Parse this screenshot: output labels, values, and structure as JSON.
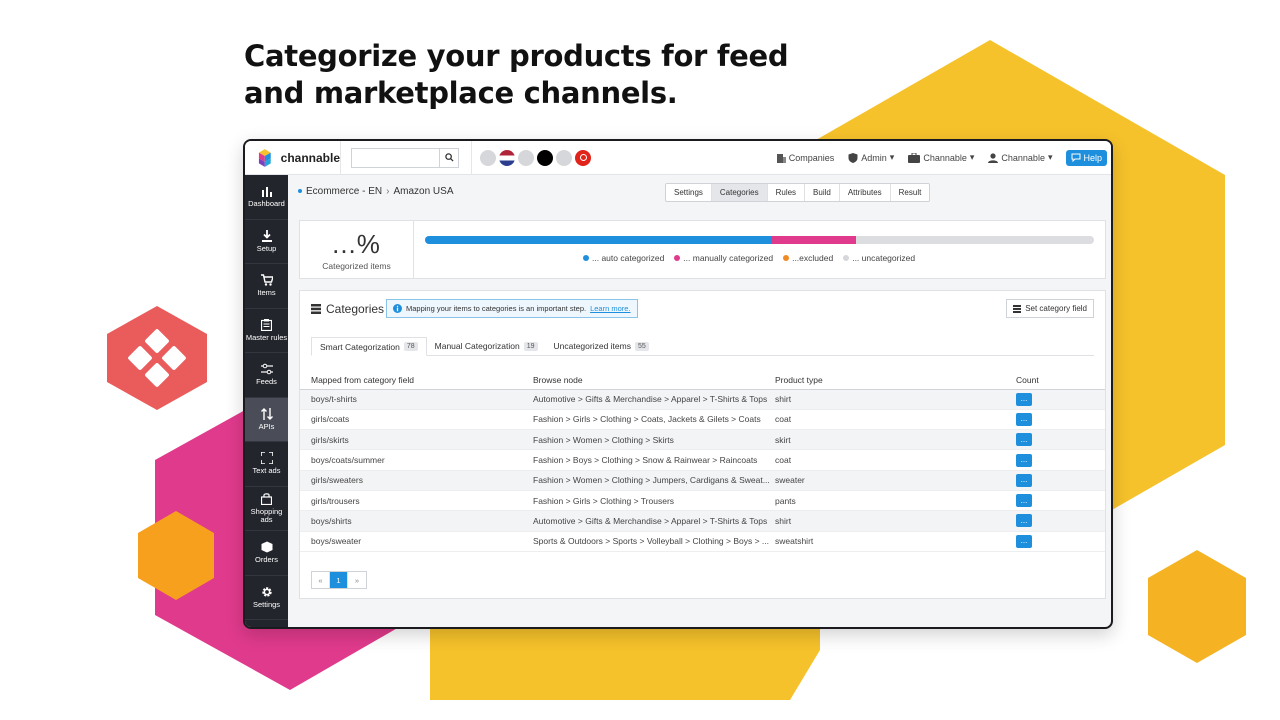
{
  "headline": {
    "line1": "Categorize your products for feed",
    "line2": "and marketplace channels."
  },
  "colors": {
    "brand_blue": "#1e8fdc",
    "pink": "#e03a8c",
    "yellow": "#f6c22b",
    "orange": "#f08a24",
    "sidebar": "#23252d"
  },
  "app": {
    "logo_text": "channable",
    "search": {
      "placeholder": "",
      "value": ""
    },
    "topnav": {
      "companies": "Companies",
      "admin": "Admin",
      "project": "Channable",
      "user": "Channable",
      "help": "Help"
    },
    "sidebar": [
      {
        "label": "Dashboard",
        "icon": "bar-chart-icon"
      },
      {
        "label": "Setup",
        "icon": "download-icon"
      },
      {
        "label": "Items",
        "icon": "cart-icon"
      },
      {
        "label": "Master rules",
        "icon": "clipboard-icon"
      },
      {
        "label": "Feeds",
        "icon": "sliders-icon"
      },
      {
        "label": "APIs",
        "icon": "arrows-updown-icon"
      },
      {
        "label": "Text ads",
        "icon": "expand-icon"
      },
      {
        "label": "Shopping ads",
        "icon": "shopping-bag-icon"
      },
      {
        "label": "Orders",
        "icon": "box-icon"
      },
      {
        "label": "Settings",
        "icon": "gear-icon"
      }
    ],
    "breadcrumb": {
      "project": "Ecommerce - EN",
      "channel": "Amazon USA"
    },
    "steps": [
      "Settings",
      "Categories",
      "Rules",
      "Build",
      "Attributes",
      "Result"
    ],
    "stats": {
      "percent": "...%",
      "label": "Categorized items",
      "progress": {
        "auto": 0.518,
        "manual": 0.126
      },
      "legend": {
        "auto": "... auto categorized",
        "manual": "... manually categorized",
        "excluded": "...excluded",
        "uncategorized": "... uncategorized"
      }
    },
    "categories": {
      "title": "Categories",
      "info_text": "Mapping your items to categories is an important step.",
      "info_link": "Learn more.",
      "set_field_button": "Set category field",
      "tabs": [
        {
          "label": "Smart Categorization",
          "count": "78"
        },
        {
          "label": "Manual Categorization",
          "count": "19"
        },
        {
          "label": "Uncategorized items",
          "count": "55"
        }
      ],
      "columns": [
        "Mapped from category field",
        "Browse node",
        "Product type",
        "Count"
      ],
      "rows": [
        [
          "boys/t-shirts",
          "Automotive > Gifts & Merchandise > Apparel > T-Shirts & Tops",
          "shirt",
          "..."
        ],
        [
          "girls/coats",
          "Fashion > Girls > Clothing > Coats, Jackets & Gilets > Coats",
          "coat",
          "..."
        ],
        [
          "girls/skirts",
          "Fashion > Women > Clothing > Skirts",
          "skirt",
          "..."
        ],
        [
          "boys/coats/summer",
          "Fashion > Boys > Clothing > Snow & Rainwear > Raincoats",
          "coat",
          "..."
        ],
        [
          "girls/sweaters",
          "Fashion > Women > Clothing > Jumpers, Cardigans & Sweat...",
          "sweater",
          "..."
        ],
        [
          "girls/trousers",
          "Fashion > Girls > Clothing > Trousers",
          "pants",
          "..."
        ],
        [
          "boys/shirts",
          "Automotive > Gifts & Merchandise > Apparel > T-Shirts & Tops",
          "shirt",
          "..."
        ],
        [
          "boys/sweater",
          "Sports & Outdoors > Sports > Volleyball > Clothing > Boys > ...",
          "sweatshirt",
          "..."
        ]
      ],
      "pagination": {
        "prev": "«",
        "current": "1",
        "next": "»"
      }
    }
  }
}
